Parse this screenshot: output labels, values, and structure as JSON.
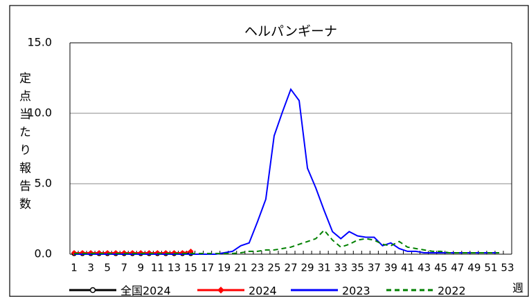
{
  "chart_data": {
    "type": "line",
    "title": "ヘルパンギーナ",
    "y_label": "定点当たり報告数",
    "x_label": "週",
    "categories": [
      "1",
      null,
      "3",
      null,
      "5",
      null,
      "7",
      null,
      "9",
      null,
      "11",
      null,
      "13",
      null,
      "15",
      null,
      "17",
      null,
      "19",
      null,
      "21",
      null,
      "23",
      null,
      "25",
      null,
      "27",
      null,
      "29",
      null,
      "31",
      null,
      "33",
      null,
      "35",
      null,
      "37",
      null,
      "39",
      null,
      "41",
      null,
      "43",
      null,
      "45",
      null,
      "47",
      null,
      "49",
      null,
      "51",
      null,
      "53"
    ],
    "ylim": [
      0,
      15
    ],
    "yticks": [
      {
        "value": 0,
        "label": "0.0"
      },
      {
        "value": 5,
        "label": "5.0"
      },
      {
        "value": 10,
        "label": "10.0"
      },
      {
        "value": 15,
        "label": "15.0"
      }
    ],
    "grid": true,
    "legend": "bottom",
    "series": [
      {
        "name": "全国2024",
        "color": "#000000",
        "style": "solid",
        "marker": "circle",
        "values": [
          0.05,
          0.05,
          0.05,
          0.05,
          0.05,
          0.05,
          0.05,
          0.05,
          0.05,
          0.05,
          0.05,
          0.05,
          0.05,
          0.05,
          0.05,
          null,
          null,
          null,
          null,
          null,
          null,
          null,
          null,
          null,
          null,
          null,
          null,
          null,
          null,
          null,
          null,
          null,
          null,
          null,
          null,
          null,
          null,
          null,
          null,
          null,
          null,
          null,
          null,
          null,
          null,
          null,
          null,
          null,
          null,
          null,
          null,
          null,
          null
        ]
      },
      {
        "name": "2024",
        "color": "#ff0000",
        "style": "solid",
        "marker": "diamond",
        "values": [
          0.1,
          0.1,
          0.1,
          0.1,
          0.1,
          0.1,
          0.1,
          0.1,
          0.1,
          0.1,
          0.1,
          0.1,
          0.1,
          0.1,
          0.2,
          null,
          null,
          null,
          null,
          null,
          null,
          null,
          null,
          null,
          null,
          null,
          null,
          null,
          null,
          null,
          null,
          null,
          null,
          null,
          null,
          null,
          null,
          null,
          null,
          null,
          null,
          null,
          null,
          null,
          null,
          null,
          null,
          null,
          null,
          null,
          null,
          null,
          null
        ]
      },
      {
        "name": "2023",
        "color": "#0000ff",
        "style": "solid",
        "marker": "none",
        "values": [
          0,
          0,
          0,
          0,
          0,
          0,
          0,
          0,
          0,
          0,
          0,
          0,
          0,
          0,
          0,
          0,
          0,
          0,
          0.1,
          0.2,
          0.6,
          0.8,
          2.3,
          3.9,
          8.4,
          10.1,
          11.7,
          10.9,
          6.1,
          4.7,
          3.1,
          1.6,
          1.1,
          1.6,
          1.3,
          1.2,
          1.2,
          0.6,
          0.8,
          0.4,
          0.2,
          0.2,
          0.1,
          0.1,
          0.1,
          0.1,
          0.1,
          0.1,
          0.1,
          0.1,
          0.1,
          0.1,
          null
        ]
      },
      {
        "name": "2022",
        "color": "#008000",
        "style": "dashed",
        "marker": "none",
        "values": [
          0.05,
          0.05,
          0.05,
          0.05,
          0.05,
          0.05,
          0.05,
          0.05,
          0.05,
          0.05,
          0.05,
          0.05,
          0.05,
          0.05,
          0.05,
          0.05,
          0.05,
          0.05,
          0.05,
          0.05,
          0.1,
          0.2,
          0.2,
          0.3,
          0.3,
          0.4,
          0.5,
          0.7,
          0.9,
          1.1,
          1.7,
          1.0,
          0.5,
          0.7,
          1.0,
          1.1,
          1.0,
          0.7,
          0.6,
          0.9,
          0.5,
          0.4,
          0.3,
          0.2,
          0.2,
          0.1,
          0.1,
          0.1,
          0.1,
          0.1,
          0.1,
          0.1,
          null
        ]
      }
    ]
  }
}
